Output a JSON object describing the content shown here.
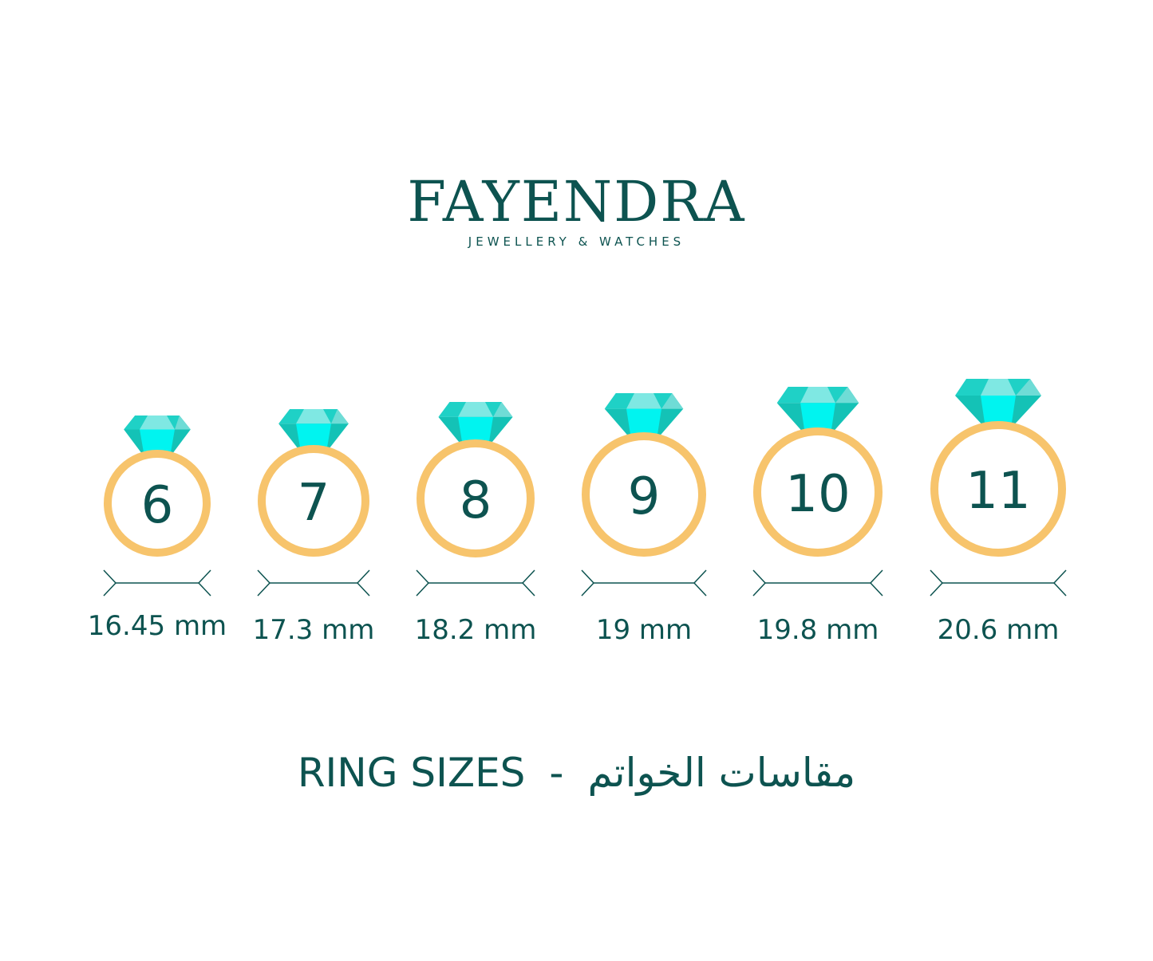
{
  "logo": {
    "name": "FAYENDRA",
    "tagline": "JEWELLERY & WATCHES"
  },
  "rings": [
    {
      "size": "6",
      "diameter": "16.45 mm"
    },
    {
      "size": "7",
      "diameter": "17.3 mm"
    },
    {
      "size": "8",
      "diameter": "18.2 mm"
    },
    {
      "size": "9",
      "diameter": "19 mm"
    },
    {
      "size": "10",
      "diameter": "19.8 mm"
    },
    {
      "size": "11",
      "diameter": "20.6 mm"
    }
  ],
  "title": {
    "english": "RING SIZES",
    "separator": "-",
    "arabic": "مقاسات الخواتم"
  },
  "colors": {
    "text": "#0d5350",
    "ring": "#f7c46c",
    "gem": "#1fd1c6",
    "gem_light": "#7fe8e3",
    "gem_bright": "#00f4f0"
  }
}
